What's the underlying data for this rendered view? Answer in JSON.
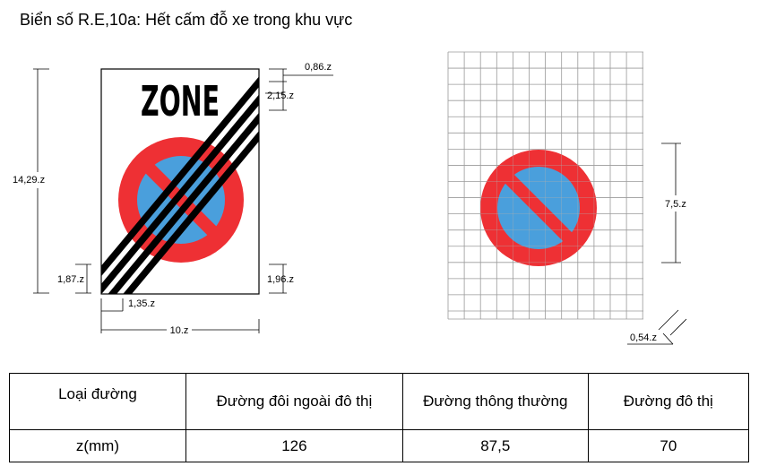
{
  "title": "Biển số R.E,10a: Hết cấm đỗ xe trong khu vực",
  "sign": {
    "zone_text": "ZONE",
    "colors": {
      "red": "#ee3034",
      "blue": "#4a9fdc",
      "black": "#000000"
    }
  },
  "dimensions": {
    "height": "14,29.z",
    "width": "10.z",
    "top_margin": "0,86.z",
    "zone_height": "2,15.z",
    "left_bottom_vertical": "1,87.z",
    "left_bottom_horizontal": "1,35.z",
    "right_bottom_vertical": "1,96.z",
    "circle_diameter": "7,5.z",
    "grid_cell": "0,54.z"
  },
  "table": {
    "headers": [
      "Loại đường",
      "Đường đôi ngoài đô thị",
      "Đường thông thường",
      "Đường đô thị"
    ],
    "row": [
      "z(mm)",
      "126",
      "87,5",
      "70"
    ]
  }
}
